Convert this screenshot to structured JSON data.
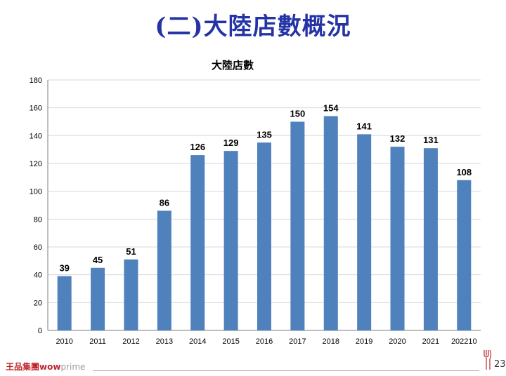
{
  "slide": {
    "title": "(二)大陸店數概況",
    "page_number": "23",
    "logo": {
      "brand_cn": "王品集團",
      "brand_wow": "wow",
      "brand_prime": "prime"
    }
  },
  "colors": {
    "title": "#2433a6",
    "bar": "#4f81bd",
    "gridline": "#d9d9d9",
    "logo": "#c0262d"
  },
  "chart_data": {
    "type": "bar",
    "title": "大陸店數",
    "categories": [
      "2010",
      "2011",
      "2012",
      "2013",
      "2014",
      "2015",
      "2016",
      "2017",
      "2018",
      "2019",
      "2020",
      "2021",
      "202210"
    ],
    "values": [
      39,
      45,
      51,
      86,
      126,
      129,
      135,
      150,
      154,
      141,
      132,
      131,
      108
    ],
    "xlabel": "",
    "ylabel": "",
    "ylim": [
      0,
      180
    ],
    "yticks": [
      0,
      20,
      40,
      60,
      80,
      100,
      120,
      140,
      160,
      180
    ],
    "grid": true,
    "legend": "none",
    "data_labels": true
  }
}
